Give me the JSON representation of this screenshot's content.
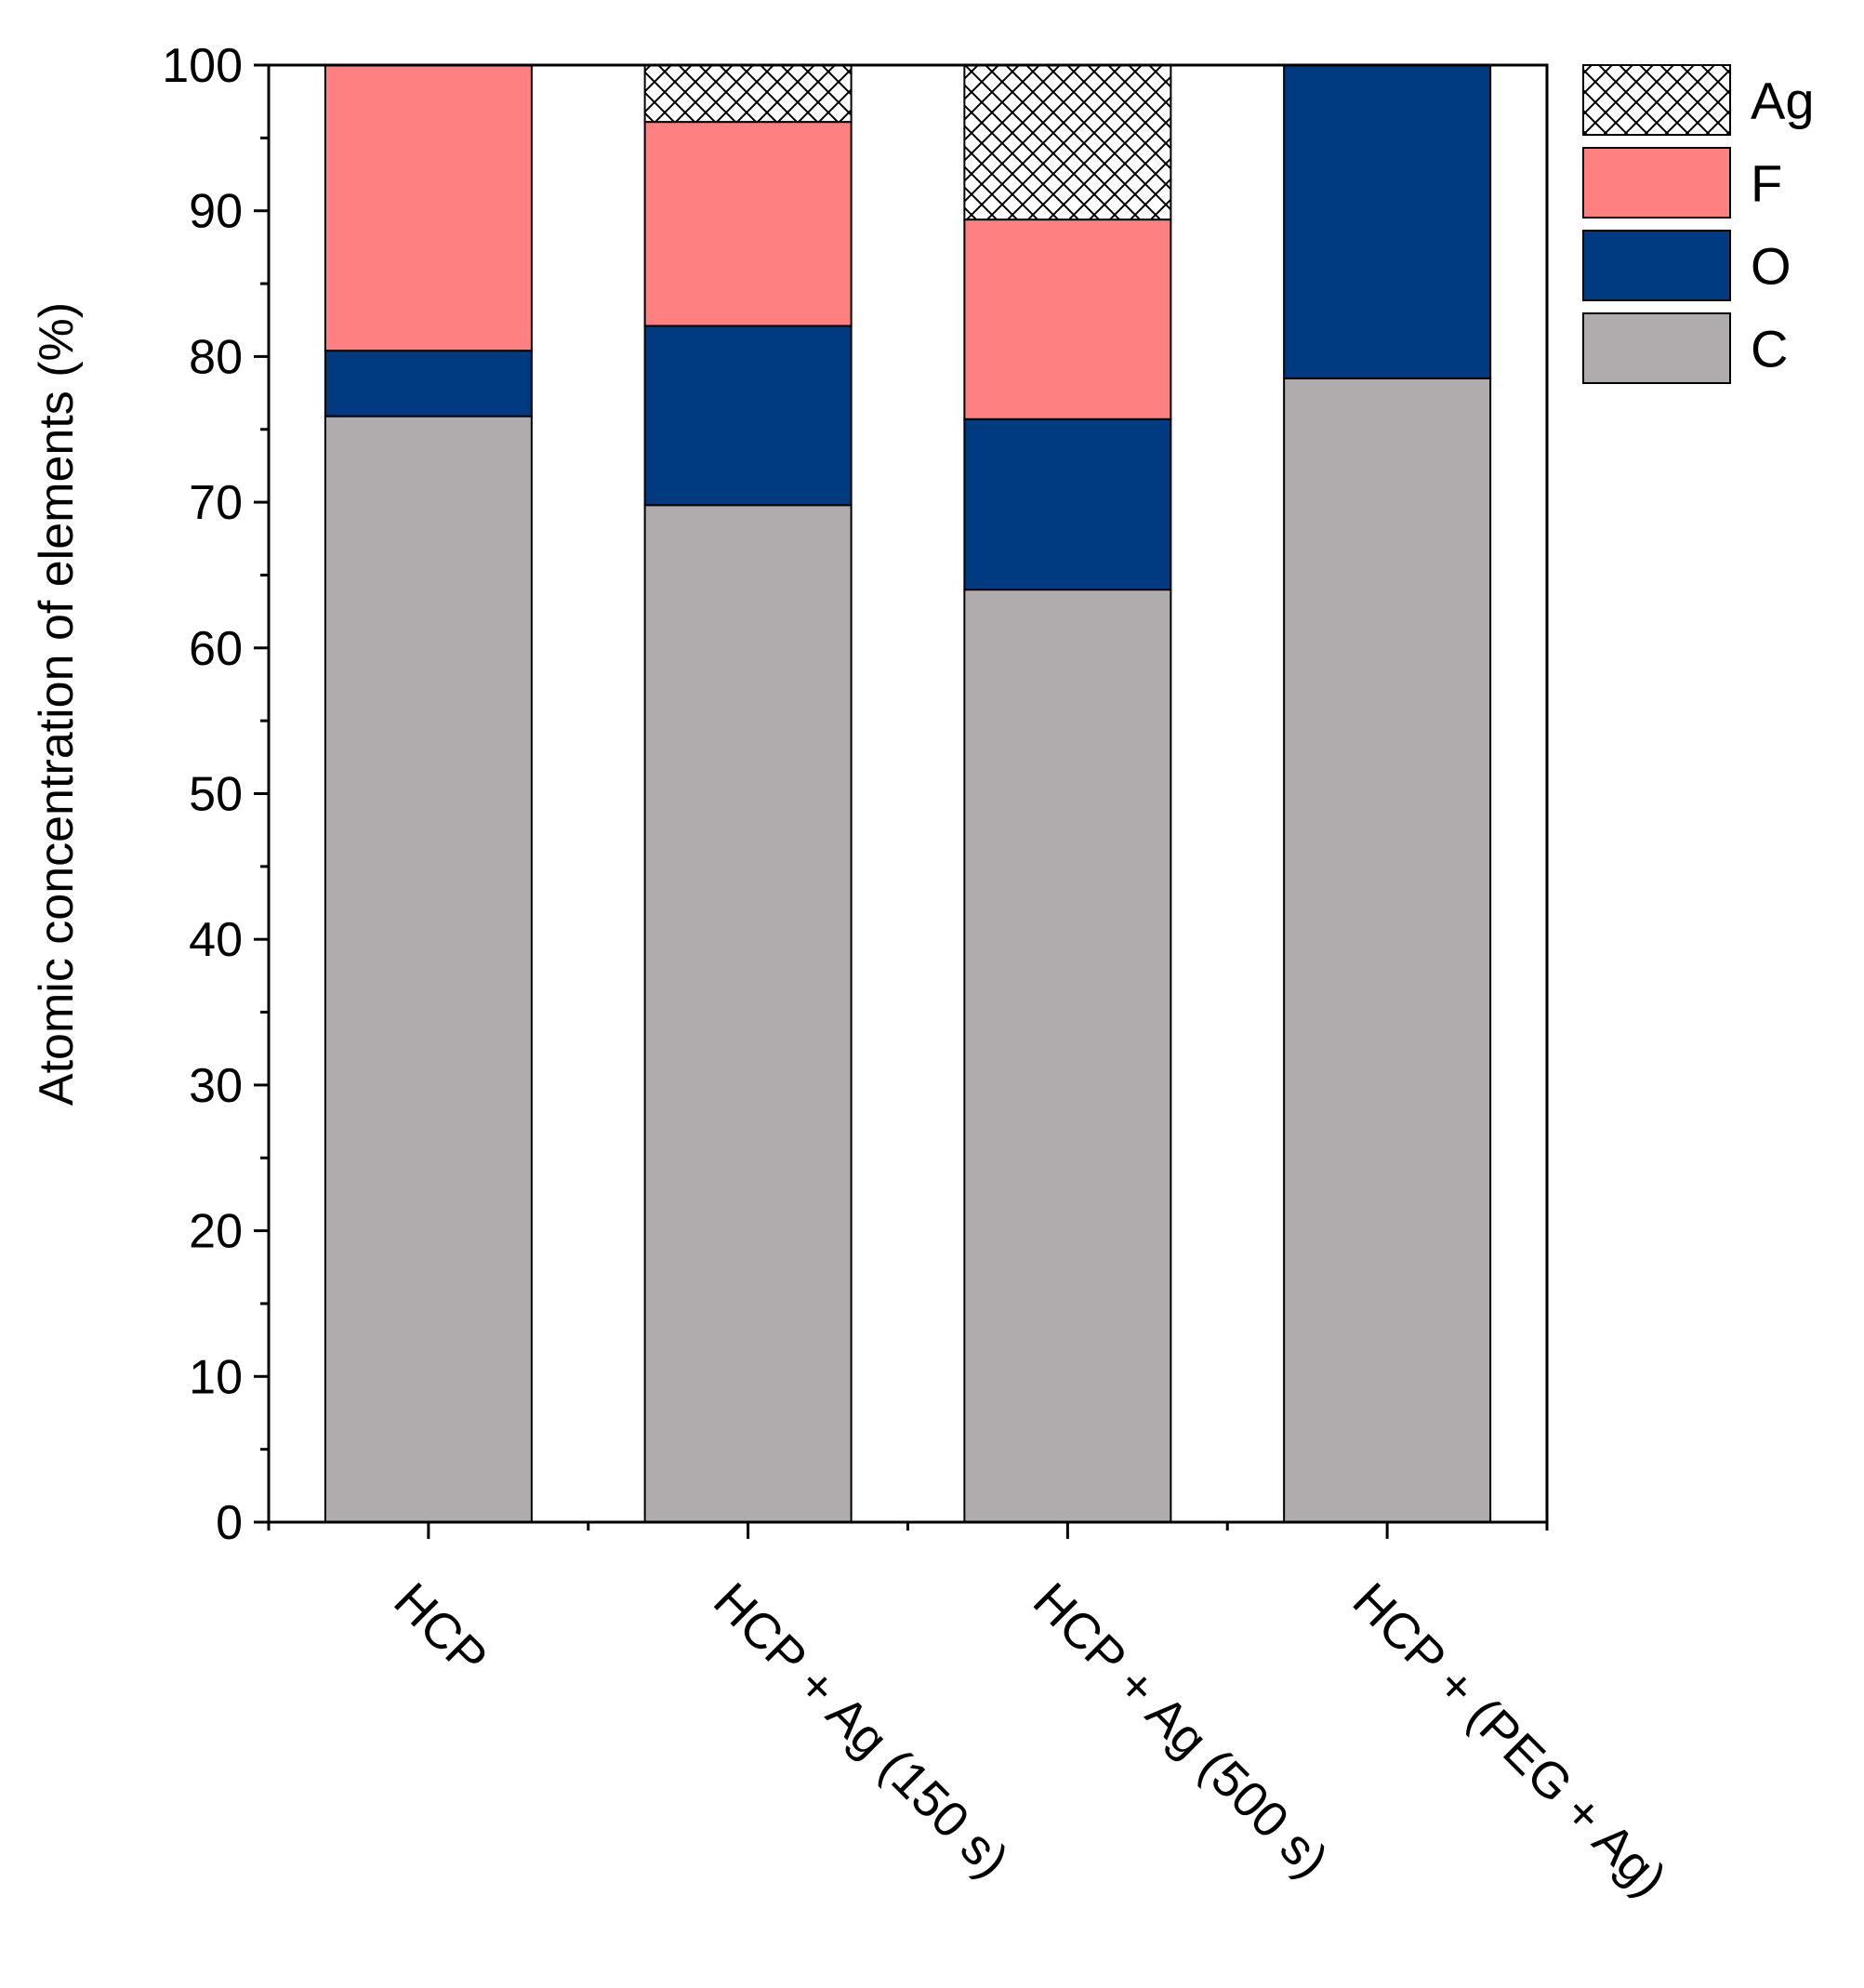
{
  "chart_data": {
    "type": "bar",
    "stacked": true,
    "title": "",
    "xlabel": "",
    "ylabel": "Atomic concentration of elements (%)",
    "ylim": [
      0,
      100
    ],
    "y_ticks": [
      "0",
      "10",
      "20",
      "30",
      "40",
      "50",
      "60",
      "70",
      "80",
      "90",
      "100"
    ],
    "grid": false,
    "legend_position": "top-right outside plot",
    "categories": [
      "HCP",
      "HCP + Ag (150 s)",
      "HCP + Ag (500 s)",
      "HCP + (PEG + Ag)"
    ],
    "series": [
      {
        "name": "C",
        "color": "#b0acad",
        "pattern": "solid",
        "values": [
          75.9,
          69.8,
          64.0,
          78.5
        ]
      },
      {
        "name": "O",
        "color": "#003a80",
        "pattern": "solid",
        "values": [
          4.5,
          12.3,
          11.7,
          21.5
        ]
      },
      {
        "name": "F",
        "color": "#ff8080",
        "pattern": "solid",
        "values": [
          19.6,
          14.0,
          13.7,
          0.0
        ]
      },
      {
        "name": "Ag",
        "color": "#ffffff",
        "pattern": "crosshatch",
        "values": [
          0.0,
          3.9,
          10.6,
          0.0
        ]
      }
    ],
    "legend_order": [
      "Ag",
      "F",
      "O",
      "C"
    ]
  }
}
